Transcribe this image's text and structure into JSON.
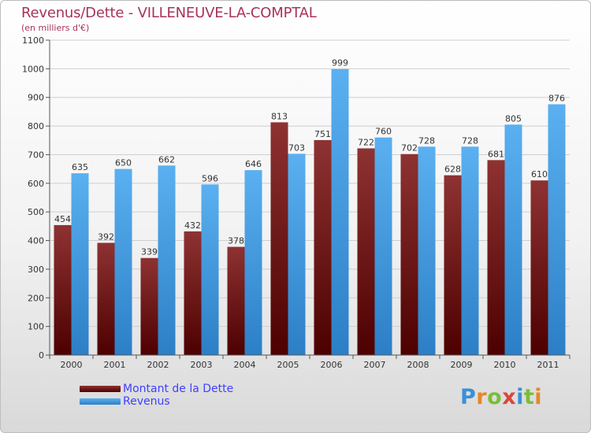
{
  "title": "Revenus/Dette - VILLENEUVE-LA-COMPTAL",
  "subtitle": "(en milliers d'€)",
  "logo_text": "Proxiti",
  "colors": {
    "dette": "#7a1a1a",
    "revenus": "#3a9ae4",
    "title": "#a8325a",
    "legend_text": "#4040ff"
  },
  "chart_data": {
    "type": "bar",
    "categories": [
      "2000",
      "2001",
      "2002",
      "2003",
      "2004",
      "2005",
      "2006",
      "2007",
      "2008",
      "2009",
      "2010",
      "2011"
    ],
    "series": [
      {
        "name": "Montant de la Dette",
        "values": [
          454,
          392,
          339,
          432,
          378,
          813,
          751,
          722,
          702,
          628,
          681,
          610
        ]
      },
      {
        "name": "Revenus",
        "values": [
          635,
          650,
          662,
          596,
          646,
          703,
          999,
          760,
          728,
          728,
          805,
          876
        ]
      }
    ],
    "yticks": [
      0,
      100,
      200,
      300,
      400,
      500,
      600,
      700,
      800,
      900,
      1000,
      1100
    ],
    "ylim": [
      0,
      1100
    ],
    "grid": true,
    "legend_position": "bottom-left"
  }
}
